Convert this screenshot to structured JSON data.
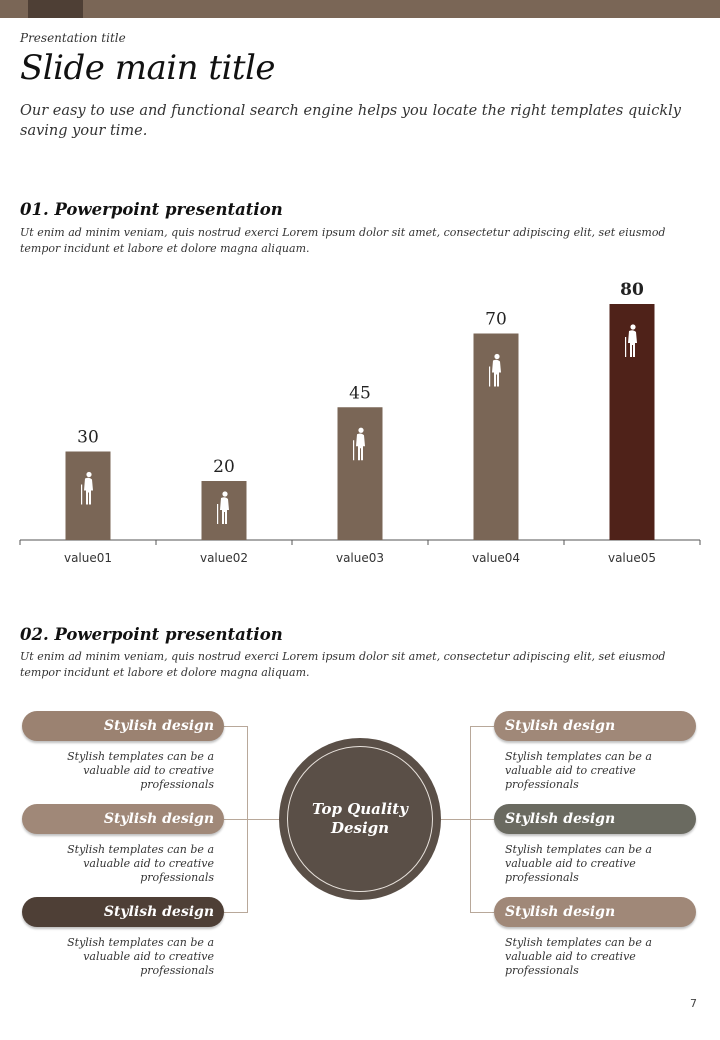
{
  "header": {
    "presentation_title": "Presentation  title",
    "main_title": "Slide main title",
    "subtitle": "Our easy to use and functional search engine helps you locate the right templates quickly saving your time."
  },
  "section1": {
    "title": "01. Powerpoint presentation",
    "body": "Ut enim ad minim veniam, quis nostrud exerci  Lorem ipsum dolor sit amet, consectetur adipiscing elit, set eiusmod tempor incidunt et labore  et dolore  magna aliquam."
  },
  "chart_data": {
    "type": "bar",
    "categories": [
      "value01",
      "value02",
      "value03",
      "value04",
      "value05"
    ],
    "values": [
      30,
      20,
      45,
      70,
      80
    ],
    "data_labels": [
      "30",
      "20",
      "45",
      "70",
      "80"
    ],
    "bar_colors": [
      "#7a6656",
      "#7a6656",
      "#7a6656",
      "#7a6656",
      "#4f2219"
    ],
    "bar_icon": "elderly-person-with-cane-icon",
    "title": "",
    "xlabel": "",
    "ylabel": "",
    "ylim": [
      0,
      80
    ],
    "grid": false,
    "legend": "none"
  },
  "section2": {
    "title": "02. Powerpoint presentation",
    "body": "Ut enim ad minim veniam, quis nostrud exerci  Lorem ipsum dolor sit amet, consectetur adipiscing elit, set eiusmod tempor incidunt et labore  et dolore  magna aliquam."
  },
  "diagram": {
    "center_text": "Top Quality Design",
    "items": [
      {
        "label": "Stylish design",
        "desc": "Stylish templates can be a valuable aid to creative professionals",
        "color": "#9b8271"
      },
      {
        "label": "Stylish design",
        "desc": "Stylish templates can be a valuable aid to creative professionals",
        "color": "#a08878"
      },
      {
        "label": "Stylish design",
        "desc": "Stylish templates can be a valuable aid to creative professionals",
        "color": "#4e3f36"
      },
      {
        "label": "Stylish design",
        "desc": "Stylish templates can be a valuable aid to creative professionals",
        "color": "#a08878"
      },
      {
        "label": "Stylish design",
        "desc": "Stylish templates can be a valuable aid to creative professionals",
        "color": "#6a6a60"
      },
      {
        "label": "Stylish design",
        "desc": "Stylish templates can be a valuable aid to creative professionals",
        "color": "#a08878"
      }
    ]
  },
  "footer": {
    "page_number": "7"
  }
}
